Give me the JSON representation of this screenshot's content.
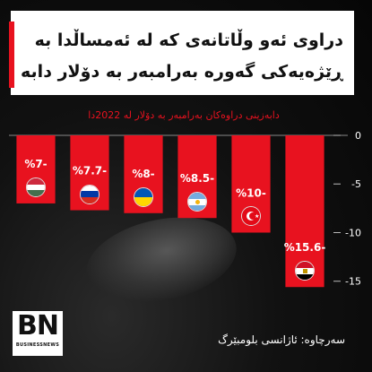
{
  "title": {
    "line1": "دراوی ئەو وڵاتانەی کە لە ئەمساڵدا بە",
    "line2": "ڕێژەیەکی گەورە بەرامبەر بە دۆلار دابەزیون"
  },
  "source": "سەرچاوە: ئاژانسی بلومبێرگ",
  "logo": {
    "main": "BN",
    "sub": "BUSINESSNEWS"
  },
  "colors": {
    "bar": "#e8121f",
    "background": "#0d0d0d",
    "title_bg": "#ffffff"
  },
  "chart_data": {
    "type": "bar",
    "title": "دابەزینی دراوەکان بەرامبەر بە دۆلار لە 2022دا",
    "categories": [
      "Hungary",
      "Russia",
      "Ukraine",
      "Argentina",
      "Turkey",
      "Egypt"
    ],
    "flag_icons": [
      "hungary-flag-icon",
      "russia-flag-icon",
      "ukraine-flag-icon",
      "argentina-flag-icon",
      "turkey-flag-icon",
      "egypt-flag-icon"
    ],
    "values": [
      -7,
      -7.7,
      -8,
      -8.5,
      -10,
      -15.6
    ],
    "labels": [
      "%7-",
      "%7.7-",
      "%8-",
      "%8.5-",
      "%10-",
      "%15.6-"
    ],
    "ylim": [
      -16.5,
      0
    ],
    "y_ticks": [
      0,
      -5,
      -10,
      -15
    ],
    "y_tick_labels": [
      "0",
      "-5",
      "-10",
      "-15"
    ],
    "axis_side": "right",
    "grid": false,
    "legend": "none"
  }
}
